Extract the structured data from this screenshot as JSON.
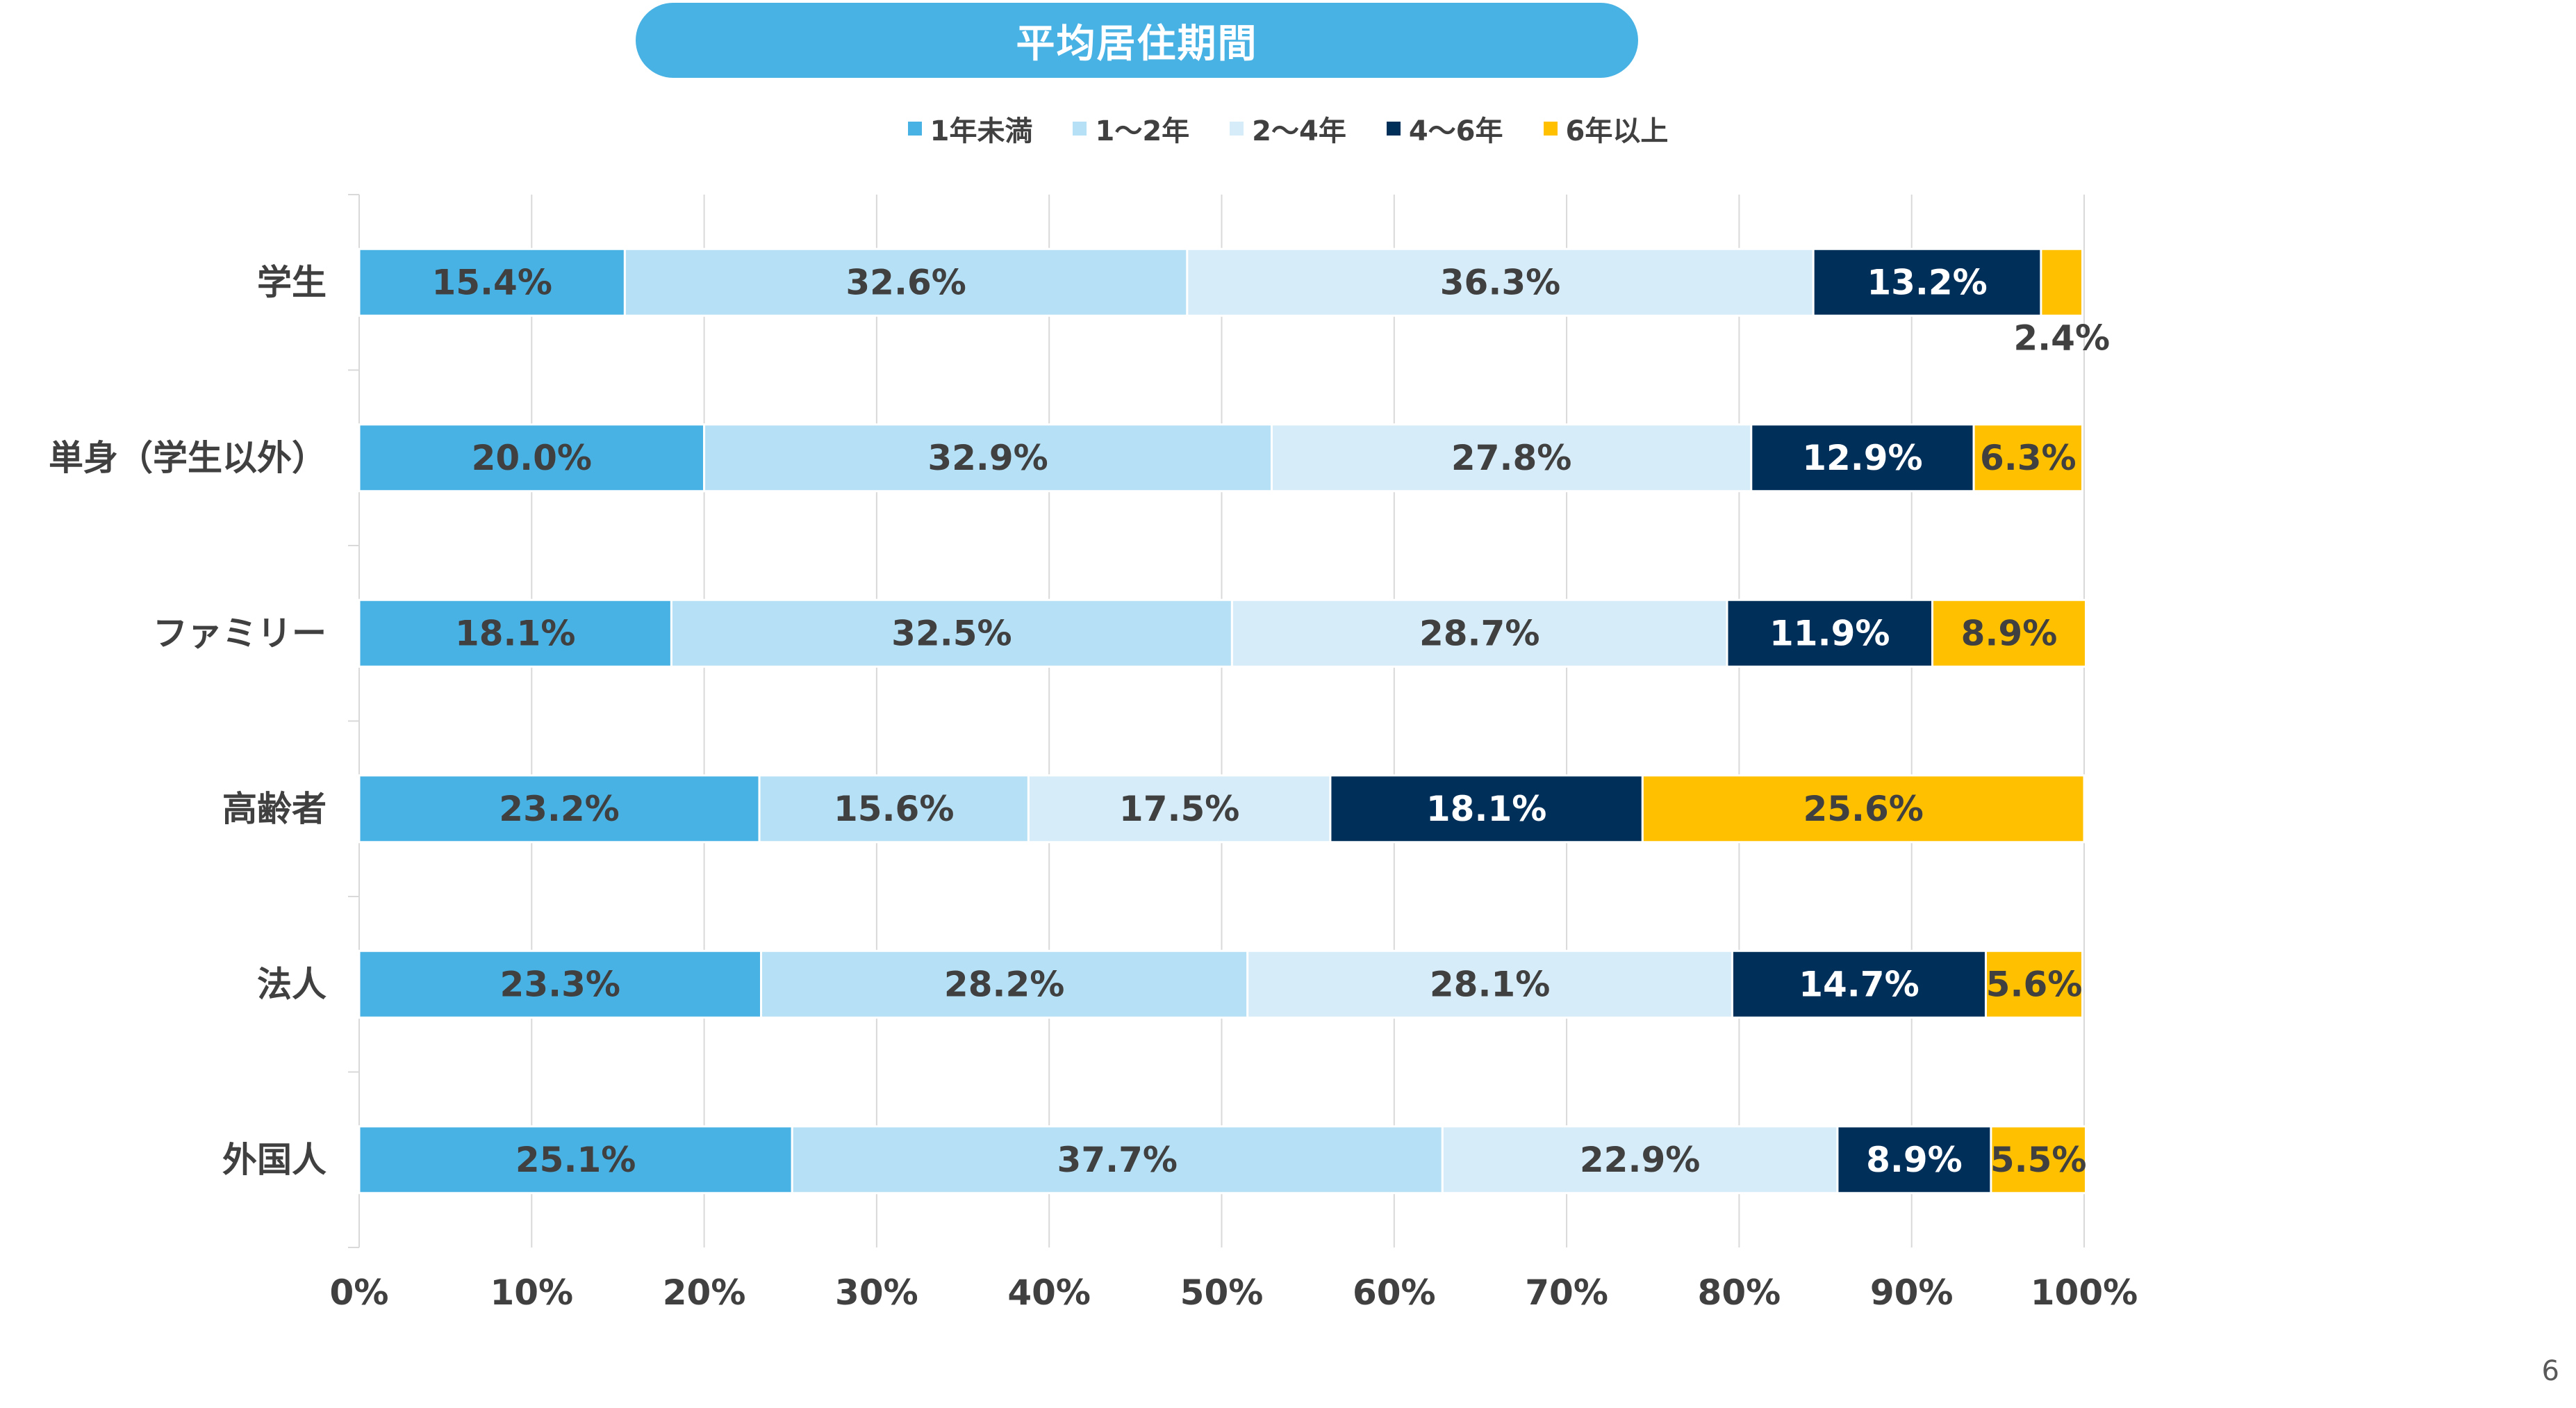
{
  "header": {
    "title": "平均居住期間"
  },
  "page_number": "6",
  "colors": {
    "lt1y": "#49b2e4",
    "y1to2": "#b5e0f5",
    "y2to4": "#d6ecf9",
    "y4to6": "#00305a",
    "gt6y": "#ffc000"
  },
  "chart_data": {
    "type": "bar",
    "orientation": "horizontal",
    "stacked": true,
    "title": "平均居住期間",
    "categories": [
      "学生",
      "単身（学生以外）",
      "ファミリー",
      "高齢者",
      "法人",
      "外国人"
    ],
    "series": [
      {
        "name": "1年未満",
        "color": "#49b2e4",
        "labelColor": "#404040",
        "values": [
          15.4,
          20.0,
          18.1,
          23.2,
          23.3,
          25.1
        ]
      },
      {
        "name": "1～2年",
        "color": "#b5e0f5",
        "labelColor": "#404040",
        "values": [
          32.6,
          32.9,
          32.5,
          15.6,
          28.2,
          37.7
        ]
      },
      {
        "name": "2～4年",
        "color": "#d6ecf9",
        "labelColor": "#404040",
        "values": [
          36.3,
          27.8,
          28.7,
          17.5,
          28.1,
          22.9
        ]
      },
      {
        "name": "4～6年",
        "color": "#00305a",
        "labelColor": "#ffffff",
        "values": [
          13.2,
          12.9,
          11.9,
          18.1,
          14.7,
          8.9
        ]
      },
      {
        "name": "6年以上",
        "color": "#ffc000",
        "labelColor": "#404040",
        "values": [
          2.4,
          6.3,
          8.9,
          25.6,
          5.6,
          5.5
        ]
      }
    ],
    "xlim": [
      0,
      100
    ],
    "xticks": [
      "0%",
      "10%",
      "20%",
      "30%",
      "40%",
      "50%",
      "60%",
      "70%",
      "80%",
      "90%",
      "100%"
    ],
    "legend_position": "top",
    "grid": true
  }
}
